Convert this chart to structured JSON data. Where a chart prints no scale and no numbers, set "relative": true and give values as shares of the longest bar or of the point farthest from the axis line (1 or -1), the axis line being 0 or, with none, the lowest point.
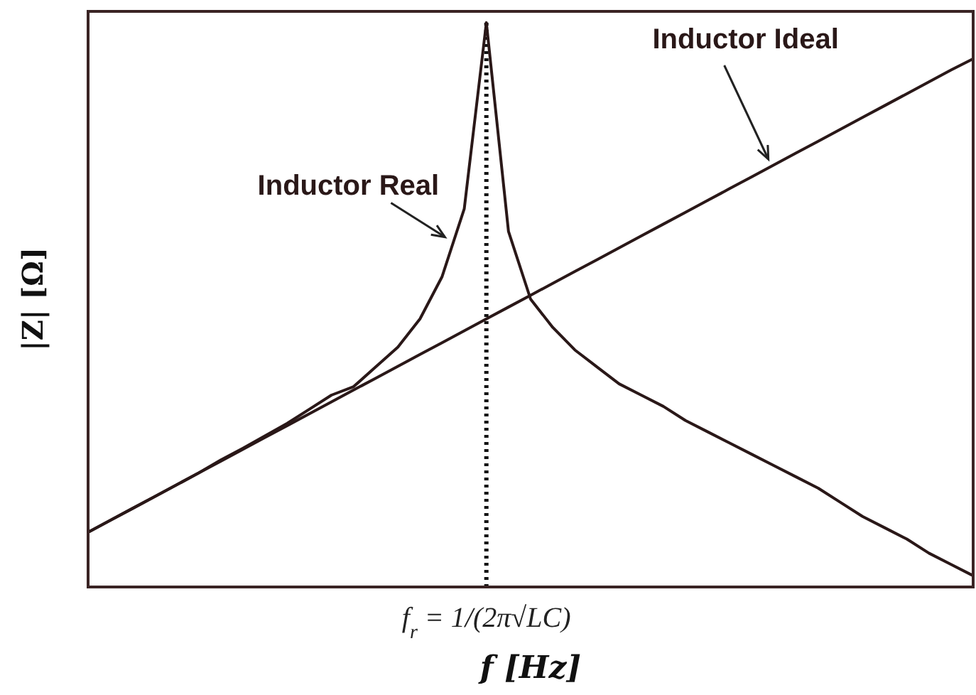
{
  "chart_data": {
    "type": "line",
    "relative": true,
    "xlabel": "f [Hz]",
    "ylabel": "|Z| [Ω]",
    "annotations": [
      "f$_{r}$ = 1/(2π√LC)"
    ],
    "line_style": "solid",
    "marker": "none",
    "categories": [
      null,
      null,
      null,
      null,
      null,
      null,
      null,
      null,
      null,
      null,
      null,
      null,
      null,
      null,
      null,
      null,
      null,
      null,
      null,
      null,
      null,
      null,
      null,
      null,
      null,
      null,
      null,
      null,
      null,
      null,
      null,
      null,
      null,
      null,
      null,
      null,
      null,
      null,
      null,
      null,
      null
    ],
    "ref_lines": [
      {
        "axis": "x",
        "line_style": "dotted",
        "color": "#111111"
      }
    ],
    "series": [
      {
        "name": "Inductor Real",
        "color": "#2a1818",
        "values": [
          0.097,
          0.118,
          0.139,
          0.16,
          0.181,
          0.202,
          0.225,
          0.246,
          0.268,
          0.29,
          0.315,
          0.34,
          0.355,
          0.39,
          0.425,
          0.475,
          0.55,
          0.67,
          1.0,
          0.63,
          0.51,
          0.46,
          0.42,
          0.39,
          0.36,
          0.34,
          0.32,
          0.295,
          0.275,
          0.255,
          0.235,
          0.215,
          0.195,
          0.175,
          0.15,
          0.125,
          0.105,
          0.085,
          0.06,
          0.04,
          0.02
        ]
      },
      {
        "name": "Inductor Ideal",
        "color": "#2a1818",
        "values": [
          0.097,
          0.118,
          0.139,
          0.16,
          0.181,
          0.202,
          0.223,
          0.244,
          0.265,
          0.286,
          0.307,
          0.328,
          0.349,
          0.37,
          0.391,
          0.412,
          0.433,
          0.454,
          0.475,
          0.496,
          0.517,
          0.538,
          0.559,
          0.58,
          0.601,
          0.622,
          0.643,
          0.664,
          0.685,
          0.706,
          0.727,
          0.748,
          0.769,
          0.79,
          0.811,
          0.832,
          0.853,
          0.874,
          0.895,
          0.916,
          0.936
        ]
      }
    ]
  }
}
